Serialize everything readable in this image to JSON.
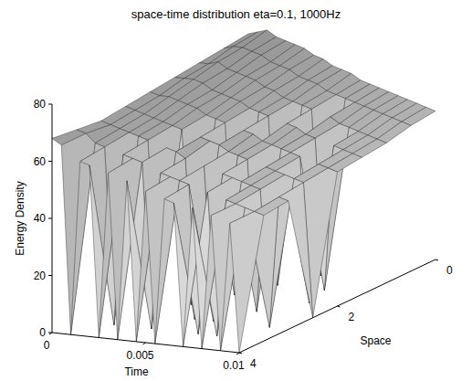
{
  "chart_data": {
    "type": "surface",
    "title": "space-time distribution eta=0.1, 1000Hz",
    "x_label": "Time",
    "y_label": "Space",
    "z_label": "Energy Density",
    "xlim": [
      0,
      0.01
    ],
    "xticks": [
      0,
      0.005,
      0.01
    ],
    "ylim": [
      0,
      4
    ],
    "yticks": [
      0,
      2,
      4
    ],
    "zlim": [
      0,
      80
    ],
    "zticks": [
      0,
      20,
      40,
      60,
      80
    ],
    "x": [
      0,
      0.0005,
      0.001,
      0.0015,
      0.002,
      0.0025,
      0.003,
      0.0035,
      0.004,
      0.0045,
      0.005,
      0.0055,
      0.006,
      0.0065,
      0.007,
      0.0075,
      0.008,
      0.0085,
      0.009,
      0.0095,
      0.01
    ],
    "y": [
      0,
      0.5,
      1,
      1.5,
      2,
      2.5,
      3,
      3.5,
      4
    ],
    "z": [
      [
        72,
        71,
        70,
        69,
        68,
        67,
        66,
        67,
        68
      ],
      [
        73,
        72,
        70,
        69,
        67,
        66,
        65,
        66,
        66
      ],
      [
        74,
        72,
        71,
        69,
        67,
        65,
        64,
        63,
        0
      ],
      [
        72,
        71,
        69,
        68,
        66,
        64,
        63,
        62,
        61
      ],
      [
        71,
        70,
        68,
        66,
        65,
        63,
        62,
        0,
        60
      ],
      [
        70,
        68,
        67,
        65,
        64,
        62,
        61,
        60,
        0
      ],
      [
        69,
        67,
        66,
        64,
        62,
        61,
        0,
        59,
        58
      ],
      [
        67,
        66,
        64,
        63,
        61,
        0,
        59,
        58,
        0
      ],
      [
        66,
        64,
        63,
        61,
        60,
        59,
        58,
        0,
        56
      ],
      [
        64,
        63,
        61,
        60,
        0,
        58,
        56,
        55,
        0
      ],
      [
        63,
        62,
        60,
        59,
        58,
        57,
        0,
        54,
        53
      ],
      [
        62,
        60,
        59,
        0,
        57,
        55,
        54,
        53,
        0
      ],
      [
        60,
        59,
        58,
        57,
        55,
        54,
        0,
        52,
        51
      ],
      [
        59,
        58,
        0,
        56,
        54,
        53,
        52,
        0,
        50
      ],
      [
        58,
        57,
        56,
        54,
        53,
        0,
        51,
        50,
        0
      ],
      [
        57,
        56,
        54,
        53,
        52,
        51,
        50,
        0,
        49
      ],
      [
        56,
        55,
        53,
        0,
        51,
        50,
        49,
        48,
        0
      ],
      [
        55,
        54,
        52,
        51,
        0,
        49,
        48,
        47,
        47
      ],
      [
        54,
        53,
        51,
        50,
        49,
        48,
        0,
        46,
        0
      ],
      [
        53,
        52,
        50,
        49,
        48,
        47,
        46,
        45,
        45
      ],
      [
        52,
        51,
        49,
        48,
        47,
        0,
        45,
        44,
        0
      ]
    ]
  }
}
